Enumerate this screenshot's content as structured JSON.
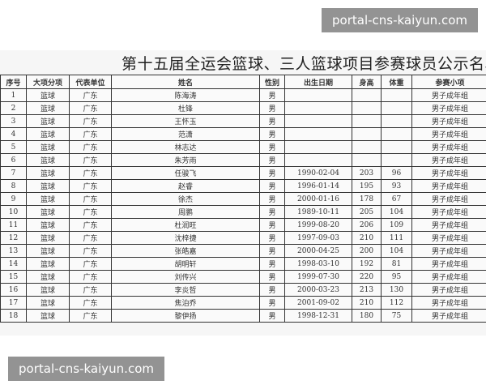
{
  "watermark": "portal-cns-kaiyun.com",
  "title": "第十五届全运会篮球、三人篮球项目参赛球员公示名单",
  "columns": [
    "序号",
    "大项分项",
    "代表单位",
    "姓名",
    "性别",
    "出生日期",
    "身高",
    "体重",
    "参赛小项"
  ],
  "rows": [
    [
      "1",
      "篮球",
      "广东",
      "陈海涛",
      "男",
      "",
      "",
      "",
      "男子成年组"
    ],
    [
      "2",
      "篮球",
      "广东",
      "杜锋",
      "男",
      "",
      "",
      "",
      "男子成年组"
    ],
    [
      "3",
      "篮球",
      "广东",
      "王怀玉",
      "男",
      "",
      "",
      "",
      "男子成年组"
    ],
    [
      "4",
      "篮球",
      "广东",
      "范潇",
      "男",
      "",
      "",
      "",
      "男子成年组"
    ],
    [
      "5",
      "篮球",
      "广东",
      "林志达",
      "男",
      "",
      "",
      "",
      "男子成年组"
    ],
    [
      "6",
      "篮球",
      "广东",
      "朱芳雨",
      "男",
      "",
      "",
      "",
      "男子成年组"
    ],
    [
      "7",
      "篮球",
      "广东",
      "任骏飞",
      "男",
      "1990-02-04",
      "203",
      "96",
      "男子成年组"
    ],
    [
      "8",
      "篮球",
      "广东",
      "赵睿",
      "男",
      "1996-01-14",
      "195",
      "93",
      "男子成年组"
    ],
    [
      "9",
      "篮球",
      "广东",
      "徐杰",
      "男",
      "2000-01-16",
      "178",
      "67",
      "男子成年组"
    ],
    [
      "10",
      "篮球",
      "广东",
      "周鹏",
      "男",
      "1989-10-11",
      "205",
      "104",
      "男子成年组"
    ],
    [
      "11",
      "篮球",
      "广东",
      "杜润旺",
      "男",
      "1999-08-20",
      "206",
      "109",
      "男子成年组"
    ],
    [
      "12",
      "篮球",
      "广东",
      "沈梓捷",
      "男",
      "1997-09-03",
      "210",
      "111",
      "男子成年组"
    ],
    [
      "13",
      "篮球",
      "广东",
      "张皓嘉",
      "男",
      "2000-04-25",
      "200",
      "104",
      "男子成年组"
    ],
    [
      "14",
      "篮球",
      "广东",
      "胡明轩",
      "男",
      "1998-03-10",
      "192",
      "81",
      "男子成年组"
    ],
    [
      "15",
      "篮球",
      "广东",
      "刘传兴",
      "男",
      "1999-07-30",
      "220",
      "95",
      "男子成年组"
    ],
    [
      "16",
      "篮球",
      "广东",
      "李炎哲",
      "男",
      "2000-03-23",
      "213",
      "130",
      "男子成年组"
    ],
    [
      "17",
      "篮球",
      "广东",
      "焦泊乔",
      "男",
      "2001-09-02",
      "210",
      "112",
      "男子成年组"
    ],
    [
      "18",
      "篮球",
      "广东",
      "黎伊扬",
      "男",
      "1998-12-31",
      "180",
      "75",
      "男子成年组"
    ]
  ]
}
